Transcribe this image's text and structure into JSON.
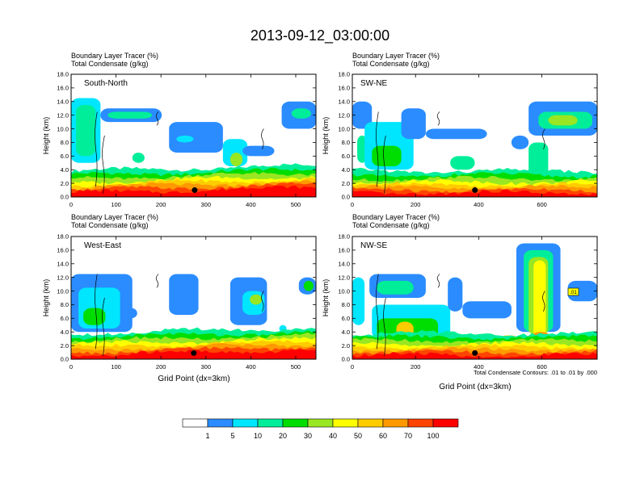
{
  "figure": {
    "title": "2013-09-12_03:00:00",
    "contour_note": "Total Condensate Contours: .01 to .01 by .000",
    "marker_label": ".01",
    "colorbar": {
      "colors": [
        "#ffffff",
        "#2a8cff",
        "#00e6ff",
        "#00ee99",
        "#00dd00",
        "#99e622",
        "#ffff00",
        "#ffcc00",
        "#ff9900",
        "#ff4400",
        "#ff0000"
      ],
      "labels": [
        "1",
        "5",
        "10",
        "20",
        "30",
        "40",
        "50",
        "60",
        "70",
        "100"
      ]
    }
  },
  "chart_data": [
    {
      "type": "heatmap",
      "title": "South-North",
      "header": [
        "Boundary Layer Tracer   (%)",
        "Total Condensate   (g/kg)"
      ],
      "xlabel": "",
      "ylabel": "Height (km)",
      "xlim": [
        0,
        545
      ],
      "ylim": [
        0,
        18
      ],
      "xticks": [
        "0",
        "100",
        "200",
        "300",
        "400",
        "500"
      ],
      "yticks": [
        "0.0",
        "2.0",
        "4.0",
        "6.0",
        "8.0",
        "10.0",
        "12.0",
        "14.0",
        "16.0",
        "18.0"
      ],
      "marker": [
        275,
        1.0
      ]
    },
    {
      "type": "heatmap",
      "title": "SW-NE",
      "header": [
        "Boundary Layer Tracer   (%)",
        "Total Condensate   (g/kg)"
      ],
      "xlabel": "",
      "ylabel": "Height (km)",
      "xlim": [
        0,
        775
      ],
      "ylim": [
        0,
        18
      ],
      "xticks": [
        "0",
        "200",
        "400",
        "600"
      ],
      "yticks": [
        "0.0",
        "2.0",
        "4.0",
        "6.0",
        "8.0",
        "10.0",
        "12.0",
        "14.0",
        "16.0",
        "18.0"
      ],
      "marker": [
        388,
        1.0
      ]
    },
    {
      "type": "heatmap",
      "title": "West-East",
      "header": [
        "Boundary Layer Tracer   (%)",
        "Total Condensate   (g/kg)"
      ],
      "xlabel": "Grid Point (dx=3km)",
      "ylabel": "Height (km)",
      "xlim": [
        0,
        545
      ],
      "ylim": [
        0,
        18
      ],
      "xticks": [
        "0",
        "100",
        "200",
        "300",
        "400",
        "500"
      ],
      "yticks": [
        "0.0",
        "2.0",
        "4.0",
        "6.0",
        "8.0",
        "10.0",
        "12.0",
        "14.0",
        "16.0",
        "18.0"
      ],
      "marker": [
        273,
        0.9
      ]
    },
    {
      "type": "heatmap",
      "title": "NW-SE",
      "header": [
        "Boundary Layer Tracer   (%)",
        "Total Condensate   (g/kg)"
      ],
      "xlabel": "Grid Point (dx=3km)",
      "ylabel": "Height (km)",
      "xlim": [
        0,
        775
      ],
      "ylim": [
        0,
        18
      ],
      "xticks": [
        "0",
        "200",
        "400",
        "600"
      ],
      "yticks": [
        "0.0",
        "2.0",
        "4.0",
        "6.0",
        "8.0",
        "10.0",
        "12.0",
        "14.0",
        "16.0",
        "18.0"
      ],
      "marker": [
        388,
        0.9
      ]
    }
  ]
}
